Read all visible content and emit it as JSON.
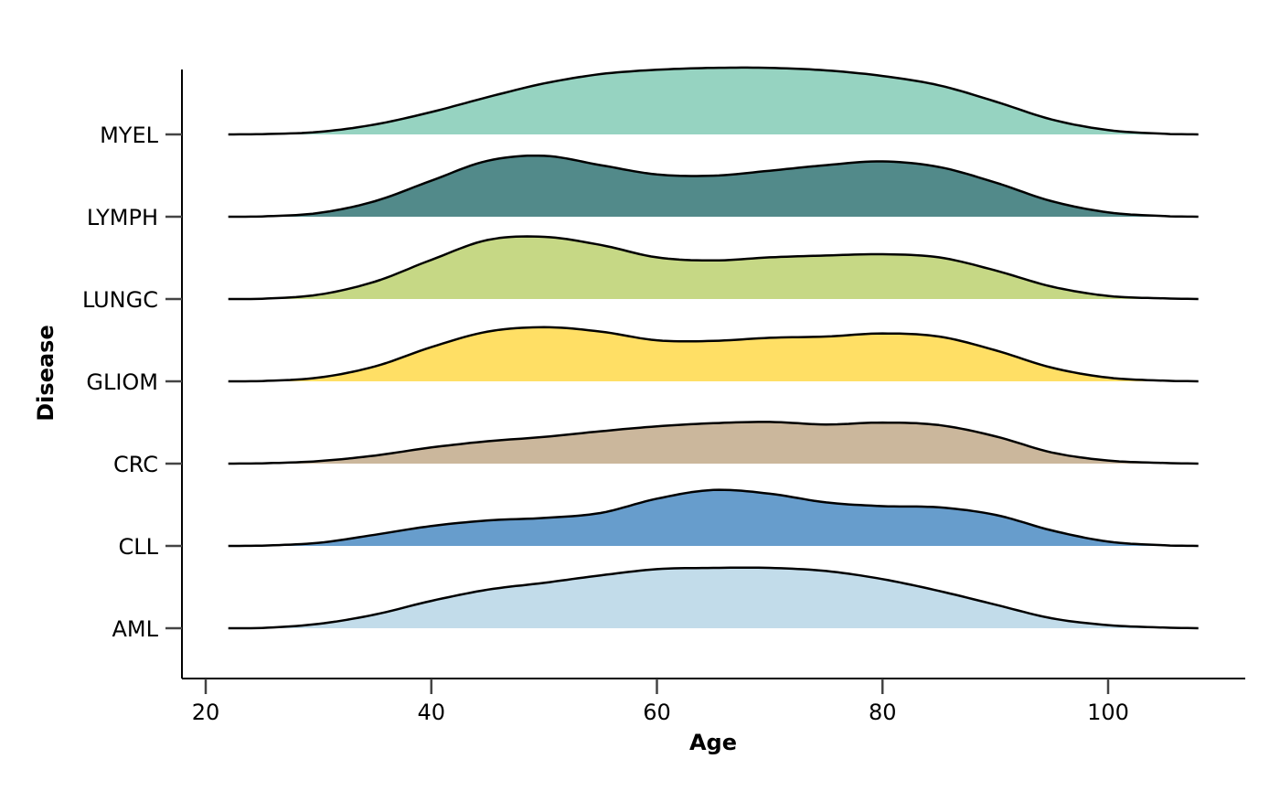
{
  "chart_data": {
    "type": "ridgeline",
    "xlabel": "Age",
    "ylabel": "Disease",
    "xlim": [
      18,
      115
    ],
    "x_ticks": [
      20,
      40,
      60,
      80,
      100
    ],
    "density_range": [
      22,
      108
    ],
    "grid": false,
    "legend": "none",
    "x_grid": [
      22,
      25,
      30,
      35,
      40,
      45,
      50,
      55,
      60,
      65,
      70,
      75,
      80,
      85,
      90,
      95,
      100,
      105,
      108
    ],
    "series": [
      {
        "name": "AML",
        "color": "#c2dcea",
        "density": [
          0,
          0.005,
          0.07,
          0.22,
          0.44,
          0.62,
          0.73,
          0.85,
          0.95,
          0.97,
          0.97,
          0.92,
          0.79,
          0.6,
          0.38,
          0.16,
          0.05,
          0.01,
          0
        ]
      },
      {
        "name": "CLL",
        "color": "#679dcc",
        "density": [
          0,
          0.005,
          0.05,
          0.18,
          0.32,
          0.41,
          0.45,
          0.53,
          0.76,
          0.9,
          0.84,
          0.7,
          0.64,
          0.62,
          0.5,
          0.25,
          0.07,
          0.01,
          0
        ]
      },
      {
        "name": "CRC",
        "color": "#cbb79c",
        "density": [
          0,
          0.005,
          0.04,
          0.13,
          0.26,
          0.36,
          0.43,
          0.52,
          0.6,
          0.65,
          0.67,
          0.63,
          0.66,
          0.62,
          0.44,
          0.18,
          0.05,
          0.01,
          0
        ]
      },
      {
        "name": "GLIOM",
        "color": "#ffdf65",
        "density": [
          0,
          0.005,
          0.06,
          0.24,
          0.55,
          0.8,
          0.87,
          0.8,
          0.66,
          0.65,
          0.7,
          0.72,
          0.77,
          0.72,
          0.5,
          0.22,
          0.06,
          0.01,
          0
        ]
      },
      {
        "name": "LUNGC",
        "color": "#c6d885",
        "density": [
          0,
          0.005,
          0.07,
          0.28,
          0.63,
          0.95,
          1.0,
          0.87,
          0.67,
          0.62,
          0.67,
          0.7,
          0.72,
          0.67,
          0.46,
          0.2,
          0.05,
          0.01,
          0
        ]
      },
      {
        "name": "LYMPH",
        "color": "#528a8a",
        "density": [
          0,
          0.005,
          0.06,
          0.25,
          0.58,
          0.9,
          0.98,
          0.83,
          0.68,
          0.66,
          0.74,
          0.83,
          0.89,
          0.8,
          0.55,
          0.25,
          0.07,
          0.01,
          0
        ]
      },
      {
        "name": "MYEL",
        "color": "#96d3c1",
        "density": [
          0,
          0.005,
          0.04,
          0.16,
          0.36,
          0.6,
          0.82,
          0.97,
          1.04,
          1.07,
          1.07,
          1.03,
          0.94,
          0.79,
          0.53,
          0.24,
          0.07,
          0.01,
          0
        ]
      }
    ]
  }
}
